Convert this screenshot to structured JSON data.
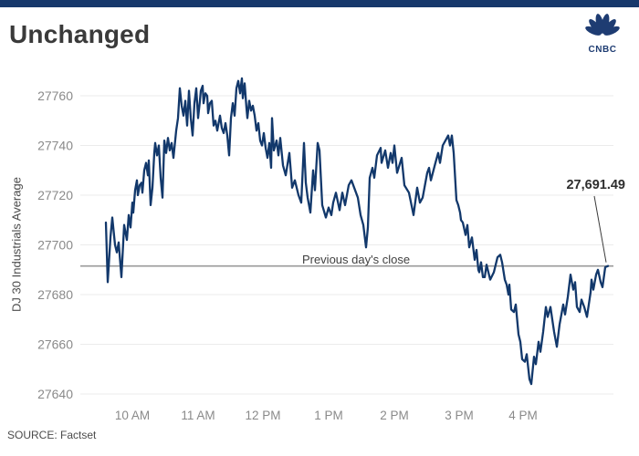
{
  "header": {
    "title": "Unchanged",
    "brand": "CNBC"
  },
  "source": {
    "label": "SOURCE: Factset"
  },
  "colors": {
    "top_bar": "#17386B",
    "logo": "#1E3C72",
    "line": "#12386B",
    "prev_close_line": "#9a9a9a",
    "grid": "#ebebeb",
    "tick_text": "#8a8a8a",
    "pointer": "#3a3a3a"
  },
  "chart_data": {
    "type": "line",
    "title": "Unchanged",
    "xlabel": "",
    "ylabel": "DJ 30 Industrials Average",
    "ylim": [
      27634,
      27772
    ],
    "grid": "horizontal",
    "legend": "none",
    "y_ticks": [
      "27760",
      "27740",
      "27720",
      "27700",
      "27680",
      "27660",
      "27640"
    ],
    "x_ticks": [
      {
        "label": "10 AM",
        "f": 0.0527
      },
      {
        "label": "11 AM",
        "f": 0.1836
      },
      {
        "label": "12 PM",
        "f": 0.3127
      },
      {
        "label": "1 PM",
        "f": 0.4436
      },
      {
        "label": "2 PM",
        "f": 0.5745
      },
      {
        "label": "3 PM",
        "f": 0.7036
      },
      {
        "label": "4 PM",
        "f": 0.8309
      }
    ],
    "previous_close": {
      "label": "Previous day's close",
      "value": 27691.49
    },
    "annotation": {
      "label": "27,691.49",
      "value": 27691.49
    },
    "stats": {
      "open": 27709,
      "high": 27767,
      "low": 27644,
      "close": 27691.49
    },
    "series": [
      {
        "name": "DJ 30 Industrials Average",
        "points": [
          [
            0.0,
            27709
          ],
          [
            0.0036,
            27685
          ],
          [
            0.0091,
            27703
          ],
          [
            0.0127,
            27711
          ],
          [
            0.0182,
            27700
          ],
          [
            0.0218,
            27697
          ],
          [
            0.0255,
            27701
          ],
          [
            0.0309,
            27687
          ],
          [
            0.0364,
            27708
          ],
          [
            0.0418,
            27702
          ],
          [
            0.0455,
            27712
          ],
          [
            0.0491,
            27707
          ],
          [
            0.0527,
            27717
          ],
          [
            0.0545,
            27713
          ],
          [
            0.0582,
            27722
          ],
          [
            0.0618,
            27726
          ],
          [
            0.0636,
            27720
          ],
          [
            0.0673,
            27724
          ],
          [
            0.0709,
            27725
          ],
          [
            0.0727,
            27721
          ],
          [
            0.0764,
            27730
          ],
          [
            0.08,
            27733
          ],
          [
            0.0836,
            27728
          ],
          [
            0.0855,
            27734
          ],
          [
            0.0891,
            27716
          ],
          [
            0.0927,
            27723
          ],
          [
            0.0964,
            27737
          ],
          [
            0.0982,
            27741
          ],
          [
            0.1018,
            27736
          ],
          [
            0.1055,
            27740
          ],
          [
            0.1091,
            27727
          ],
          [
            0.1127,
            27719
          ],
          [
            0.1164,
            27742
          ],
          [
            0.12,
            27737
          ],
          [
            0.1236,
            27743
          ],
          [
            0.1273,
            27738
          ],
          [
            0.1309,
            27741
          ],
          [
            0.1345,
            27735
          ],
          [
            0.14,
            27746
          ],
          [
            0.1436,
            27751
          ],
          [
            0.1473,
            27763
          ],
          [
            0.1509,
            27756
          ],
          [
            0.1545,
            27752
          ],
          [
            0.1582,
            27758
          ],
          [
            0.1618,
            27748
          ],
          [
            0.1655,
            27762
          ],
          [
            0.1691,
            27751
          ],
          [
            0.1727,
            27744
          ],
          [
            0.1764,
            27757
          ],
          [
            0.18,
            27763
          ],
          [
            0.1836,
            27751
          ],
          [
            0.1873,
            27758
          ],
          [
            0.1891,
            27762
          ],
          [
            0.1927,
            27764
          ],
          [
            0.1945,
            27757
          ],
          [
            0.1982,
            27761
          ],
          [
            0.2018,
            27760
          ],
          [
            0.2036,
            27753
          ],
          [
            0.2073,
            27757
          ],
          [
            0.2109,
            27758
          ],
          [
            0.2145,
            27748
          ],
          [
            0.2182,
            27750
          ],
          [
            0.2218,
            27746
          ],
          [
            0.2273,
            27752
          ],
          [
            0.2309,
            27747
          ],
          [
            0.2345,
            27745
          ],
          [
            0.2382,
            27749
          ],
          [
            0.2418,
            27744
          ],
          [
            0.2455,
            27736
          ],
          [
            0.2491,
            27751
          ],
          [
            0.2527,
            27757
          ],
          [
            0.2564,
            27752
          ],
          [
            0.26,
            27763
          ],
          [
            0.2636,
            27766
          ],
          [
            0.2673,
            27761
          ],
          [
            0.2709,
            27767
          ],
          [
            0.2727,
            27759
          ],
          [
            0.2764,
            27765
          ],
          [
            0.28,
            27755
          ],
          [
            0.2818,
            27751
          ],
          [
            0.2855,
            27758
          ],
          [
            0.2891,
            27754
          ],
          [
            0.2927,
            27756
          ],
          [
            0.2964,
            27752
          ],
          [
            0.3,
            27746
          ],
          [
            0.3036,
            27749
          ],
          [
            0.3073,
            27742
          ],
          [
            0.3109,
            27740
          ],
          [
            0.3145,
            27745
          ],
          [
            0.3182,
            27739
          ],
          [
            0.3218,
            27735
          ],
          [
            0.3255,
            27741
          ],
          [
            0.3291,
            27731
          ],
          [
            0.3309,
            27751
          ],
          [
            0.3345,
            27738
          ],
          [
            0.34,
            27742
          ],
          [
            0.3436,
            27736
          ],
          [
            0.3473,
            27743
          ],
          [
            0.3527,
            27732
          ],
          [
            0.3582,
            27728
          ],
          [
            0.3655,
            27737
          ],
          [
            0.3709,
            27723
          ],
          [
            0.3764,
            27726
          ],
          [
            0.3836,
            27720
          ],
          [
            0.3891,
            27717
          ],
          [
            0.3945,
            27741
          ],
          [
            0.3982,
            27725
          ],
          [
            0.4018,
            27719
          ],
          [
            0.4073,
            27713
          ],
          [
            0.4127,
            27730
          ],
          [
            0.4164,
            27722
          ],
          [
            0.4218,
            27741
          ],
          [
            0.4255,
            27738
          ],
          [
            0.4309,
            27716
          ],
          [
            0.4382,
            27711
          ],
          [
            0.4436,
            27715
          ],
          [
            0.4491,
            27712
          ],
          [
            0.4527,
            27717
          ],
          [
            0.4582,
            27721
          ],
          [
            0.4655,
            27714
          ],
          [
            0.4709,
            27721
          ],
          [
            0.4764,
            27716
          ],
          [
            0.4836,
            27724
          ],
          [
            0.4891,
            27726
          ],
          [
            0.4945,
            27723
          ],
          [
            0.5018,
            27719
          ],
          [
            0.5073,
            27712
          ],
          [
            0.5127,
            27708
          ],
          [
            0.5182,
            27699
          ],
          [
            0.5218,
            27707
          ],
          [
            0.5255,
            27727
          ],
          [
            0.5309,
            27731
          ],
          [
            0.5345,
            27727
          ],
          [
            0.54,
            27736
          ],
          [
            0.5473,
            27739
          ],
          [
            0.5491,
            27733
          ],
          [
            0.5564,
            27738
          ],
          [
            0.5618,
            27731
          ],
          [
            0.5673,
            27737
          ],
          [
            0.5709,
            27733
          ],
          [
            0.5745,
            27740
          ],
          [
            0.58,
            27729
          ],
          [
            0.5891,
            27735
          ],
          [
            0.5945,
            27724
          ],
          [
            0.6036,
            27721
          ],
          [
            0.6127,
            27712
          ],
          [
            0.62,
            27723
          ],
          [
            0.6255,
            27717
          ],
          [
            0.6309,
            27719
          ],
          [
            0.64,
            27729
          ],
          [
            0.6436,
            27731
          ],
          [
            0.6473,
            27726
          ],
          [
            0.6564,
            27733
          ],
          [
            0.6618,
            27737
          ],
          [
            0.6655,
            27733
          ],
          [
            0.6709,
            27740
          ],
          [
            0.6764,
            27742
          ],
          [
            0.6818,
            27744
          ],
          [
            0.6855,
            27740
          ],
          [
            0.6891,
            27744
          ],
          [
            0.6927,
            27737
          ],
          [
            0.6982,
            27718
          ],
          [
            0.7018,
            27716
          ],
          [
            0.7055,
            27713
          ],
          [
            0.7073,
            27710
          ],
          [
            0.7109,
            27709
          ],
          [
            0.7164,
            27704
          ],
          [
            0.72,
            27708
          ],
          [
            0.7236,
            27699
          ],
          [
            0.7291,
            27703
          ],
          [
            0.7345,
            27694
          ],
          [
            0.7382,
            27698
          ],
          [
            0.7418,
            27690
          ],
          [
            0.7436,
            27689
          ],
          [
            0.7473,
            27693
          ],
          [
            0.7509,
            27687
          ],
          [
            0.7545,
            27687
          ],
          [
            0.7582,
            27692
          ],
          [
            0.7655,
            27686
          ],
          [
            0.7727,
            27689
          ],
          [
            0.78,
            27695
          ],
          [
            0.7855,
            27696
          ],
          [
            0.7891,
            27693
          ],
          [
            0.7945,
            27686
          ],
          [
            0.7982,
            27684
          ],
          [
            0.8018,
            27680
          ],
          [
            0.8036,
            27684
          ],
          [
            0.8073,
            27674
          ],
          [
            0.8127,
            27673
          ],
          [
            0.8164,
            27676
          ],
          [
            0.8218,
            27664
          ],
          [
            0.8255,
            27661
          ],
          [
            0.8291,
            27654
          ],
          [
            0.8345,
            27653
          ],
          [
            0.8382,
            27656
          ],
          [
            0.8436,
            27646
          ],
          [
            0.8473,
            27644
          ],
          [
            0.8527,
            27655
          ],
          [
            0.8564,
            27652
          ],
          [
            0.8618,
            27661
          ],
          [
            0.8655,
            27657
          ],
          [
            0.8709,
            27665
          ],
          [
            0.8764,
            27675
          ],
          [
            0.88,
            27671
          ],
          [
            0.8855,
            27675
          ],
          [
            0.8891,
            27670
          ],
          [
            0.8927,
            27665
          ],
          [
            0.8982,
            27659
          ],
          [
            0.9036,
            27668
          ],
          [
            0.9109,
            27676
          ],
          [
            0.9145,
            27672
          ],
          [
            0.92,
            27679
          ],
          [
            0.9255,
            27688
          ],
          [
            0.9309,
            27682
          ],
          [
            0.9345,
            27685
          ],
          [
            0.9382,
            27675
          ],
          [
            0.9436,
            27673
          ],
          [
            0.9473,
            27678
          ],
          [
            0.9527,
            27675
          ],
          [
            0.9582,
            27671
          ],
          [
            0.9655,
            27681
          ],
          [
            0.9673,
            27686
          ],
          [
            0.9709,
            27682
          ],
          [
            0.9764,
            27688
          ],
          [
            0.98,
            27690
          ],
          [
            0.9855,
            27685
          ],
          [
            0.9891,
            27683
          ],
          [
            0.9945,
            27691
          ],
          [
            1.0,
            27691.49
          ]
        ]
      }
    ]
  }
}
